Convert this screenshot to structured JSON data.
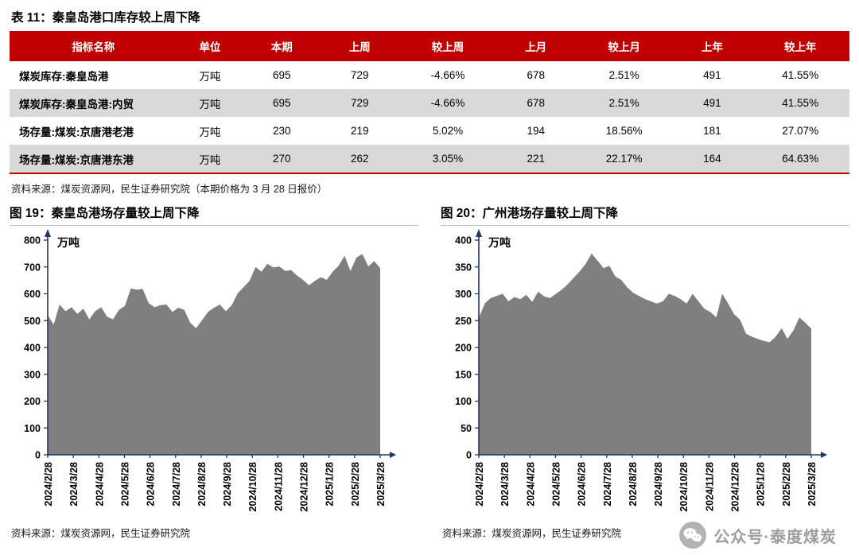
{
  "colors": {
    "header_red": "#C00000",
    "row_alt_gray": "#D9D9D9",
    "area_gray": "#7F7F7F",
    "axis_navy": "#1F3864",
    "watermark_gray": "#8C8C8C"
  },
  "table": {
    "title": "表 11：秦皇岛港口库存较上周下降",
    "headers": [
      "指标名称",
      "单位",
      "本期",
      "上周",
      "较上周",
      "上月",
      "较上月",
      "上年",
      "较上年"
    ],
    "rows": [
      [
        "煤炭库存:秦皇岛港",
        "万吨",
        "695",
        "729",
        "-4.66%",
        "678",
        "2.51%",
        "491",
        "41.55%"
      ],
      [
        "煤炭库存:秦皇岛港:内贸",
        "万吨",
        "695",
        "729",
        "-4.66%",
        "678",
        "2.51%",
        "491",
        "41.55%"
      ],
      [
        "场存量:煤炭:京唐港老港",
        "万吨",
        "230",
        "219",
        "5.02%",
        "194",
        "18.56%",
        "181",
        "27.07%"
      ],
      [
        "场存量:煤炭:京唐港东港",
        "万吨",
        "270",
        "262",
        "3.05%",
        "221",
        "22.17%",
        "164",
        "64.63%"
      ]
    ],
    "source": "资料来源：煤炭资源网，民生证券研究院（本期价格为 3 月 28 日报价）"
  },
  "chart_data": [
    {
      "type": "area",
      "title": "图 19：秦皇岛港场存量较上周下降",
      "unit_label": "万吨",
      "ylim": [
        0,
        800
      ],
      "ytick_step": 100,
      "grid": false,
      "legend": "none",
      "x_tick_labels": [
        "2024/2/28",
        "2024/3/28",
        "2024/4/28",
        "2024/5/28",
        "2024/6/28",
        "2024/7/28",
        "2024/8/28",
        "2024/9/28",
        "2024/10/28",
        "2024/11/28",
        "2024/12/28",
        "2025/1/28",
        "2025/2/28",
        "2025/3/28"
      ],
      "values": [
        520,
        485,
        560,
        535,
        550,
        525,
        545,
        505,
        535,
        550,
        515,
        505,
        540,
        555,
        620,
        615,
        618,
        565,
        550,
        558,
        560,
        532,
        548,
        540,
        492,
        472,
        502,
        532,
        548,
        560,
        535,
        558,
        602,
        625,
        648,
        700,
        682,
        712,
        698,
        702,
        685,
        688,
        668,
        652,
        632,
        648,
        662,
        652,
        682,
        705,
        742,
        685,
        735,
        748,
        702,
        722,
        695
      ],
      "source": "资料来源：煤炭资源网，民生证券研究院"
    },
    {
      "type": "area",
      "title": "图 20：广州港场存量较上周下降",
      "unit_label": "万吨",
      "ylim": [
        0,
        400
      ],
      "ytick_step": 50,
      "grid": false,
      "legend": "none",
      "x_tick_labels": [
        "2024/2/28",
        "2024/3/28",
        "2024/4/28",
        "2024/5/28",
        "2024/6/28",
        "2024/7/28",
        "2024/8/28",
        "2024/9/28",
        "2024/10/28",
        "2024/11/28",
        "2024/12/28",
        "2025/1/28",
        "2025/2/28",
        "2025/3/28"
      ],
      "values": [
        255,
        282,
        292,
        296,
        300,
        286,
        294,
        290,
        298,
        285,
        304,
        295,
        292,
        300,
        308,
        318,
        330,
        342,
        356,
        375,
        362,
        348,
        352,
        332,
        326,
        312,
        302,
        296,
        290,
        286,
        282,
        286,
        300,
        296,
        290,
        282,
        300,
        286,
        272,
        266,
        256,
        300,
        282,
        262,
        252,
        226,
        220,
        216,
        212,
        210,
        220,
        236,
        216,
        232,
        256,
        246,
        235
      ],
      "source": "资料来源：煤炭资源网，民生证券研究院"
    }
  ],
  "watermark": {
    "icon": "wechat-icon",
    "text": "公众号·泰度煤炭"
  }
}
